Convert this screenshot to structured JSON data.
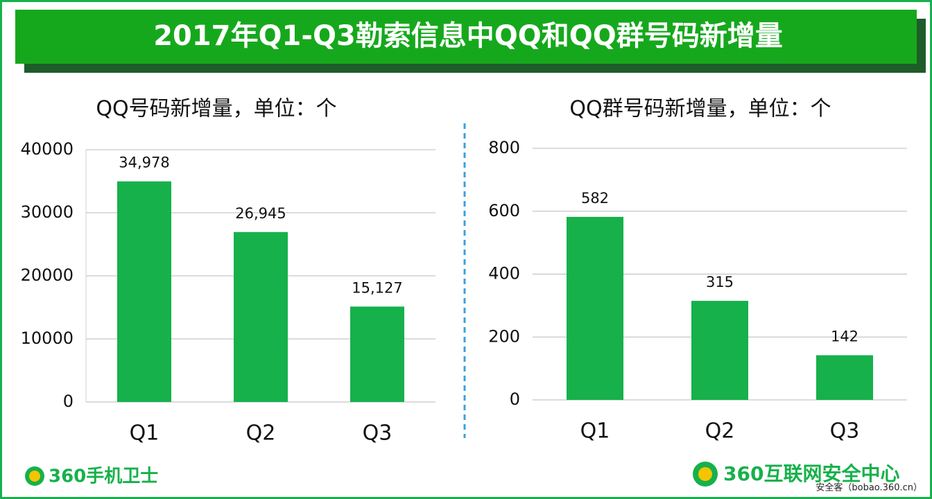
{
  "header": {
    "title": "2017年Q1-Q3勒索信息中QQ和QQ群号码新增量"
  },
  "chart_data": [
    {
      "type": "bar",
      "title": "QQ号码新增量，单位：个",
      "categories": [
        "Q1",
        "Q2",
        "Q3"
      ],
      "values": [
        34978,
        26945,
        15127
      ],
      "value_labels": [
        "34,978",
        "26,945",
        "15,127"
      ],
      "color": "#16b14b",
      "ylim": [
        0,
        40000
      ],
      "yticks": [
        0,
        10000,
        20000,
        30000,
        40000
      ],
      "grid": true
    },
    {
      "type": "bar",
      "title": "QQ群号码新增量，单位：个",
      "categories": [
        "Q1",
        "Q2",
        "Q3"
      ],
      "values": [
        582,
        315,
        142
      ],
      "color": "#16b14b",
      "ylim": [
        0,
        800
      ],
      "yticks": [
        0,
        200,
        400,
        600,
        800
      ],
      "grid": true
    }
  ],
  "footer": {
    "left_logo": "360手机卫士",
    "right_logo": "360互联网安全中心",
    "source": "安全客（bobao.360.cn）"
  }
}
